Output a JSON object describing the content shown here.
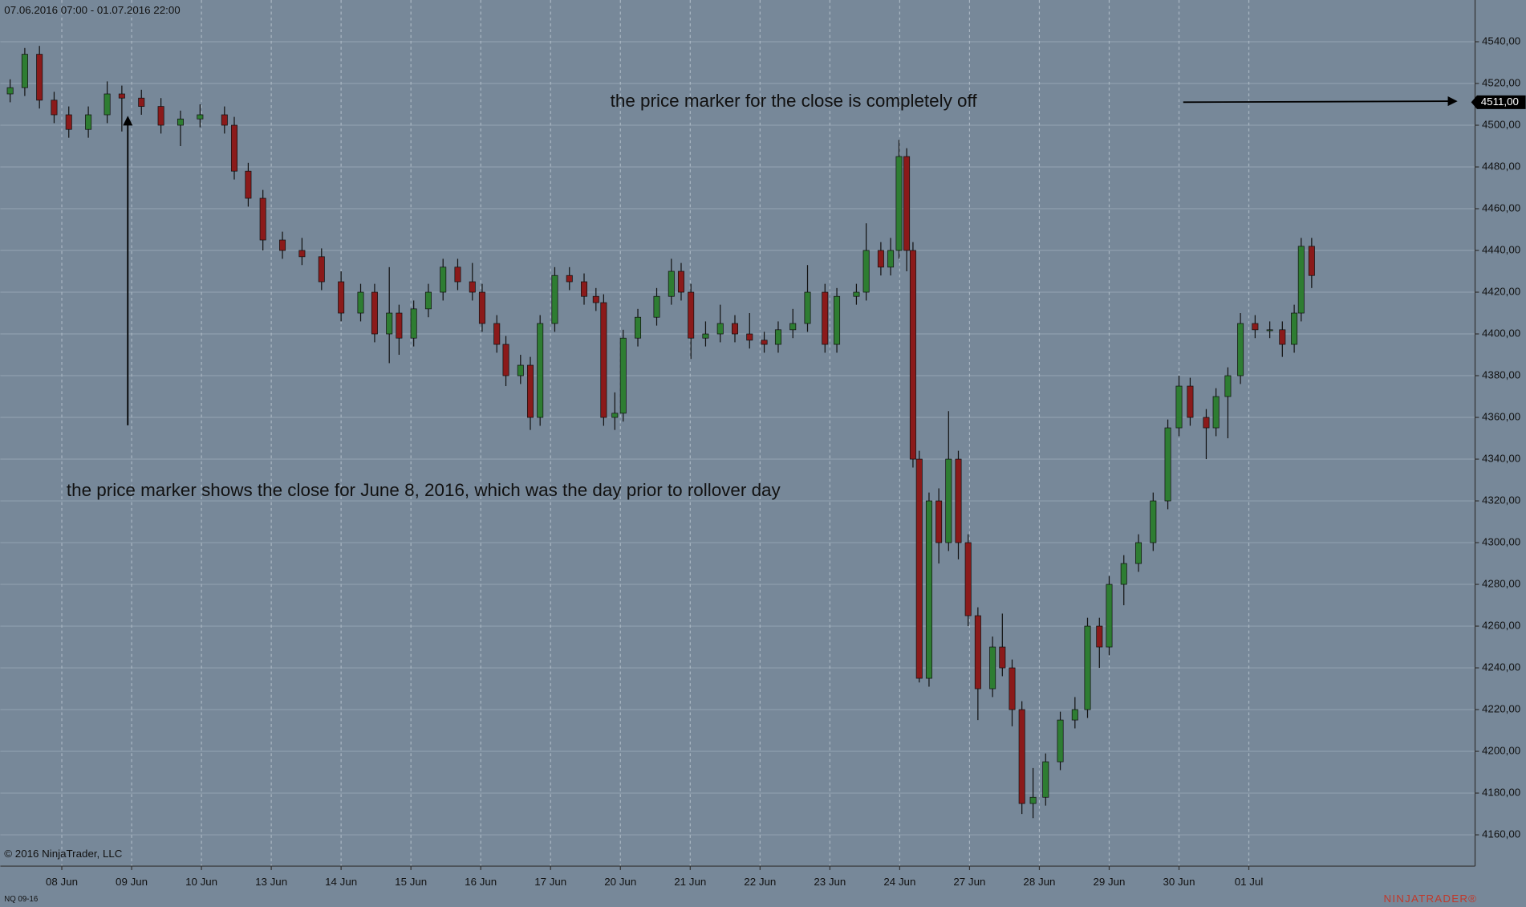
{
  "chart_data": {
    "type": "candlestick",
    "title": "07.06.2016 07:00 - 01.07.2016 22:00",
    "instrument": "NQ 09-16",
    "copyright": "© 2016 NinjaTrader, LLC",
    "brand": "NINJATRADER®",
    "annotations": [
      "the price marker for the close is completely off",
      "the price marker shows the close for June 8, 2016, which was the day prior to rollover day"
    ],
    "price_marker": {
      "value": 4511,
      "label": "4511,00"
    },
    "up_color": "#2e7d32",
    "down_color": "#8b1a1a",
    "grid": true,
    "xlim": [
      -0.88,
      20.24
    ],
    "ylim": [
      4145,
      4560
    ],
    "xticks": [
      {
        "value": 0,
        "label": "08 Jun"
      },
      {
        "value": 1,
        "label": "09 Jun"
      },
      {
        "value": 2,
        "label": "10 Jun"
      },
      {
        "value": 3,
        "label": "13 Jun"
      },
      {
        "value": 4,
        "label": "14 Jun"
      },
      {
        "value": 5,
        "label": "15 Jun"
      },
      {
        "value": 6,
        "label": "16 Jun"
      },
      {
        "value": 7,
        "label": "17 Jun"
      },
      {
        "value": 8,
        "label": "20 Jun"
      },
      {
        "value": 9,
        "label": "21 Jun"
      },
      {
        "value": 10,
        "label": "22 Jun"
      },
      {
        "value": 11,
        "label": "23 Jun"
      },
      {
        "value": 12,
        "label": "24 Jun"
      },
      {
        "value": 13,
        "label": "27 Jun"
      },
      {
        "value": 14,
        "label": "28 Jun"
      },
      {
        "value": 15,
        "label": "29 Jun"
      },
      {
        "value": 16,
        "label": "30 Jun"
      },
      {
        "value": 17,
        "label": "01 Jul"
      }
    ],
    "yticks": [
      {
        "value": 4160,
        "label": "4160,00"
      },
      {
        "value": 4180,
        "label": "4180,00"
      },
      {
        "value": 4200,
        "label": "4200,00"
      },
      {
        "value": 4220,
        "label": "4220,00"
      },
      {
        "value": 4240,
        "label": "4240,00"
      },
      {
        "value": 4260,
        "label": "4260,00"
      },
      {
        "value": 4280,
        "label": "4280,00"
      },
      {
        "value": 4300,
        "label": "4300,00"
      },
      {
        "value": 4320,
        "label": "4320,00"
      },
      {
        "value": 4340,
        "label": "4340,00"
      },
      {
        "value": 4360,
        "label": "4360,00"
      },
      {
        "value": 4380,
        "label": "4380,00"
      },
      {
        "value": 4400,
        "label": "4400,00"
      },
      {
        "value": 4420,
        "label": "4420,00"
      },
      {
        "value": 4440,
        "label": "4440,00"
      },
      {
        "value": 4460,
        "label": "4460,00"
      },
      {
        "value": 4480,
        "label": "4480,00"
      },
      {
        "value": 4500,
        "label": "4500,00"
      },
      {
        "value": 4520,
        "label": "4520,00"
      },
      {
        "value": 4540,
        "label": "4540,00"
      }
    ],
    "x": [
      -0.74,
      -0.53,
      -0.32,
      -0.11,
      0.1,
      0.38,
      0.65,
      0.86,
      1.14,
      1.42,
      1.7,
      1.98,
      2.33,
      2.47,
      2.67,
      2.88,
      3.16,
      3.44,
      3.72,
      4.0,
      4.28,
      4.48,
      4.69,
      4.83,
      5.04,
      5.25,
      5.46,
      5.67,
      5.88,
      6.02,
      6.23,
      6.36,
      6.57,
      6.71,
      6.85,
      7.06,
      7.27,
      7.48,
      7.65,
      7.76,
      7.92,
      8.04,
      8.25,
      8.52,
      8.73,
      8.87,
      9.01,
      9.22,
      9.43,
      9.64,
      9.85,
      10.06,
      10.26,
      10.47,
      10.68,
      10.93,
      11.1,
      11.38,
      11.52,
      11.73,
      11.87,
      11.99,
      12.1,
      12.19,
      12.28,
      12.42,
      12.56,
      12.7,
      12.84,
      12.98,
      13.12,
      13.33,
      13.47,
      13.61,
      13.75,
      13.91,
      14.09,
      14.3,
      14.51,
      14.69,
      14.86,
      15.0,
      15.21,
      15.42,
      15.63,
      15.84,
      16.0,
      16.16,
      16.39,
      16.53,
      16.7,
      16.88,
      17.09,
      17.3,
      17.48,
      17.65,
      17.75,
      17.9
    ],
    "open": [
      4515,
      4518,
      4534,
      4512,
      4505,
      4498,
      4505,
      4515,
      4513,
      4509,
      4500,
      4503,
      4505,
      4500,
      4478,
      4465,
      4445,
      4440,
      4437,
      4425,
      4410,
      4420,
      4400,
      4410,
      4398,
      4412,
      4420,
      4432,
      4425,
      4420,
      4405,
      4395,
      4380,
      4385,
      4360,
      4405,
      4428,
      4425,
      4418,
      4415,
      4360,
      4362,
      4398,
      4408,
      4418,
      4430,
      4420,
      4398,
      4400,
      4405,
      4400,
      4397,
      4395,
      4402,
      4405,
      4420,
      4395,
      4418,
      4420,
      4440,
      4432,
      4440,
      4485,
      4440,
      4340,
      4235,
      4320,
      4300,
      4340,
      4300,
      4265,
      4230,
      4250,
      4240,
      4220,
      4175,
      4178,
      4195,
      4215,
      4220,
      4260,
      4250,
      4280,
      4290,
      4300,
      4320,
      4355,
      4375,
      4360,
      4355,
      4370,
      4380,
      4405,
      4402,
      4402,
      4395,
      4410,
      4442
    ],
    "high": [
      4522,
      4537,
      4538,
      4516,
      4509,
      4509,
      4521,
      4519,
      4517,
      4513,
      4507,
      4510,
      4509,
      4504,
      4482,
      4469,
      4449,
      4446,
      4441,
      4430,
      4424,
      4424,
      4432,
      4414,
      4416,
      4424,
      4436,
      4436,
      4434,
      4424,
      4409,
      4399,
      4390,
      4389,
      4409,
      4432,
      4432,
      4429,
      4422,
      4419,
      4372,
      4402,
      4412,
      4422,
      4436,
      4434,
      4424,
      4406,
      4414,
      4409,
      4410,
      4401,
      4406,
      4412,
      4433,
      4424,
      4422,
      4424,
      4453,
      4444,
      4446,
      4493,
      4489,
      4444,
      4344,
      4324,
      4326,
      4363,
      4344,
      4304,
      4269,
      4255,
      4266,
      4244,
      4224,
      4192,
      4199,
      4219,
      4226,
      4264,
      4264,
      4284,
      4294,
      4304,
      4324,
      4359,
      4380,
      4379,
      4364,
      4374,
      4384,
      4410,
      4409,
      4406,
      4406,
      4414,
      4446,
      4446
    ],
    "low": [
      4511,
      4514,
      4508,
      4501,
      4494,
      4494,
      4501,
      4497,
      4505,
      4496,
      4490,
      4499,
      4496,
      4474,
      4461,
      4440,
      4436,
      4433,
      4421,
      4406,
      4406,
      4396,
      4386,
      4390,
      4394,
      4408,
      4416,
      4421,
      4416,
      4401,
      4391,
      4375,
      4376,
      4354,
      4356,
      4401,
      4421,
      4414,
      4411,
      4356,
      4354,
      4358,
      4394,
      4404,
      4414,
      4416,
      4388,
      4394,
      4396,
      4396,
      4393,
      4391,
      4391,
      4398,
      4401,
      4391,
      4391,
      4414,
      4416,
      4428,
      4428,
      4436,
      4430,
      4336,
      4233,
      4231,
      4290,
      4296,
      4292,
      4260,
      4215,
      4226,
      4236,
      4212,
      4170,
      4168,
      4174,
      4191,
      4211,
      4216,
      4240,
      4246,
      4270,
      4286,
      4296,
      4316,
      4351,
      4356,
      4340,
      4351,
      4350,
      4376,
      4398,
      4398,
      4389,
      4391,
      4406,
      4422
    ],
    "close": [
      4518,
      4534,
      4512,
      4505,
      4498,
      4505,
      4515,
      4513,
      4509,
      4500,
      4503,
      4505,
      4500,
      4478,
      4465,
      4445,
      4440,
      4437,
      4425,
      4410,
      4420,
      4400,
      4410,
      4398,
      4412,
      4420,
      4432,
      4425,
      4420,
      4405,
      4395,
      4380,
      4385,
      4360,
      4405,
      4428,
      4425,
      4418,
      4415,
      4360,
      4362,
      4398,
      4408,
      4418,
      4430,
      4420,
      4398,
      4400,
      4405,
      4400,
      4397,
      4395,
      4402,
      4405,
      4420,
      4395,
      4418,
      4420,
      4440,
      4432,
      4440,
      4485,
      4440,
      4340,
      4235,
      4320,
      4300,
      4340,
      4300,
      4265,
      4230,
      4250,
      4240,
      4220,
      4175,
      4178,
      4195,
      4215,
      4220,
      4260,
      4250,
      4280,
      4290,
      4300,
      4320,
      4355,
      4375,
      4360,
      4355,
      4370,
      4380,
      4405,
      4402,
      4402,
      4395,
      4410,
      4442,
      4428
    ]
  }
}
